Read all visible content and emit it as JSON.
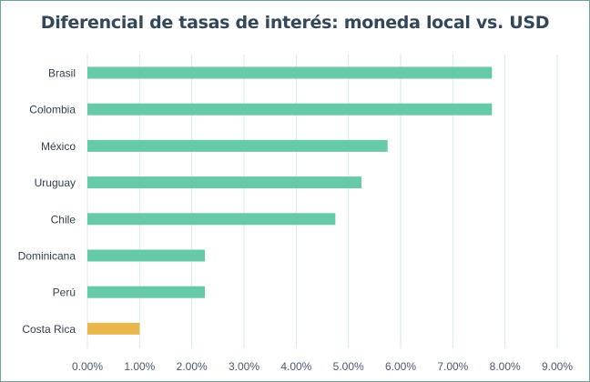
{
  "chart_data": {
    "type": "bar",
    "orientation": "horizontal",
    "title": "Diferencial de tasas de interés: moneda local vs. USD",
    "categories": [
      "Brasil",
      "Colombia",
      "México",
      "Uruguay",
      "Chile",
      "Dominicana",
      "Perú",
      "Costa Rica"
    ],
    "values": [
      7.75,
      7.75,
      5.75,
      5.25,
      4.75,
      2.25,
      2.25,
      1.0
    ],
    "highlight": "Costa Rica",
    "xlim": [
      0,
      9
    ],
    "xticks": [
      "0.00%",
      "1.00%",
      "2.00%",
      "3.00%",
      "4.00%",
      "5.00%",
      "6.00%",
      "7.00%",
      "8.00%",
      "9.00%"
    ],
    "xlabel": "",
    "ylabel": "",
    "grid": true,
    "colors": {
      "bar": "#66c9a8",
      "highlight": "#e8b84c",
      "grid": "#d6ebe7"
    }
  }
}
